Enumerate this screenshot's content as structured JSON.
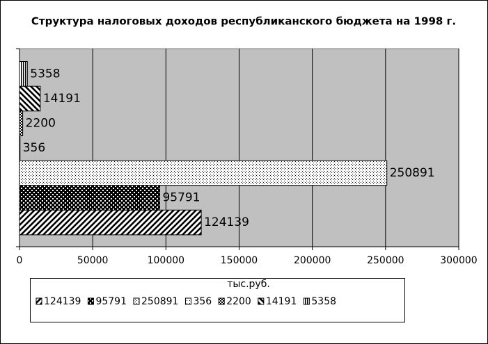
{
  "chart_data": {
    "type": "bar",
    "horizontal": true,
    "title": "Структура налоговых доходов республиканского бюджета на 1998 г.",
    "xlabel": "тыс.руб.",
    "categories": [
      null
    ],
    "series": [
      {
        "name": "124139",
        "values": [
          124139
        ],
        "pattern": "diag-up"
      },
      {
        "name": "95791",
        "values": [
          95791
        ],
        "pattern": "checker-big"
      },
      {
        "name": "250891",
        "values": [
          250891
        ],
        "pattern": "grid-fine"
      },
      {
        "name": "356",
        "values": [
          356
        ],
        "pattern": "dots"
      },
      {
        "name": "2200",
        "values": [
          2200
        ],
        "pattern": "checker-small"
      },
      {
        "name": "14191",
        "values": [
          14191
        ],
        "pattern": "diag-down"
      },
      {
        "name": "5358",
        "values": [
          5358
        ],
        "pattern": "vertical"
      }
    ],
    "xlim": [
      0,
      300000
    ],
    "xticks": [
      0,
      50000,
      100000,
      150000,
      200000,
      250000,
      300000
    ],
    "grid": true,
    "plot_color": "#c0c0c0",
    "legend": "bottom"
  }
}
